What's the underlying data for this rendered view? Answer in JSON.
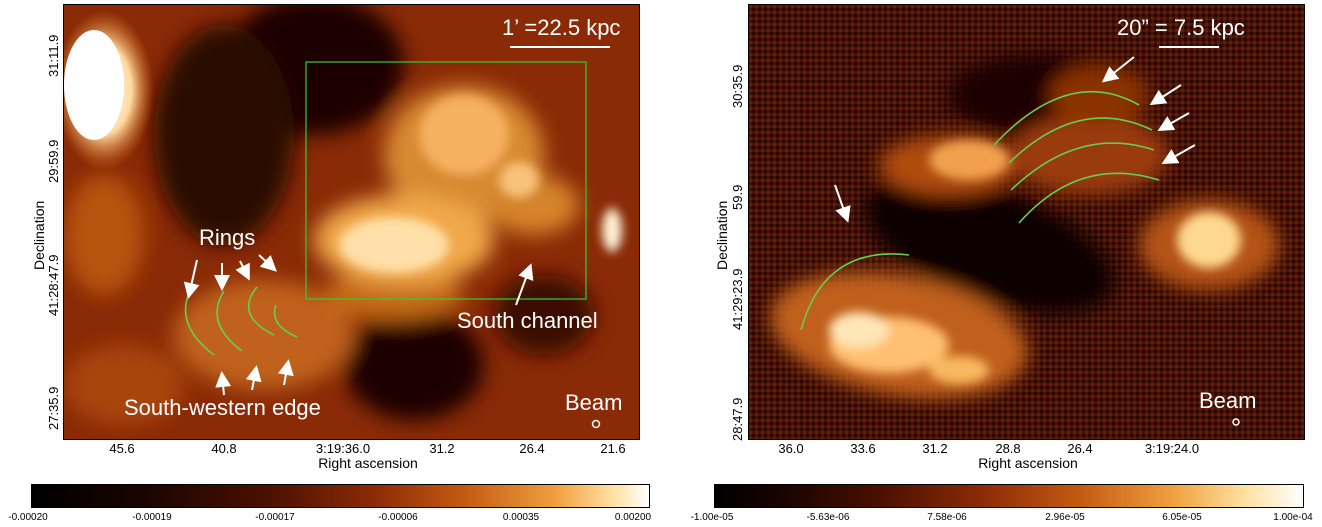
{
  "left": {
    "scale_label": "1’ =22.5 kpc",
    "ylabel": "Declination",
    "xlabel": "Right ascension",
    "yticks": [
      "31:11.9",
      "29:59.9",
      "41:28:47.9",
      "27:35.9"
    ],
    "xticks": [
      "45.6",
      "40.8",
      "3:19:36.0",
      "31.2",
      "26.4",
      "21.6"
    ],
    "rings_label": "Rings",
    "south_channel_label": "South channel",
    "sw_edge_label": "South-western edge",
    "beam_label": "Beam",
    "colorbar_ticks": [
      "-0.00020",
      "-0.00019",
      "-0.00017",
      "-0.00006",
      "0.00035",
      "0.00200"
    ],
    "colors": {
      "low": "#000000",
      "mid": "#a0300a",
      "high": "#ffffff",
      "box": "#33cc33",
      "arc": "#66cc55"
    }
  },
  "right": {
    "scale_label": "20” = 7.5 kpc",
    "ylabel": "Declination",
    "xlabel": "Right ascension",
    "yticks": [
      "30:35.9",
      "59.9",
      "41:29:23.9",
      "28:47.9"
    ],
    "xticks": [
      "36.0",
      "33.6",
      "31.2",
      "28.8",
      "26.4",
      "3:19:24.0"
    ],
    "beam_label": "Beam",
    "colorbar_ticks": [
      "-1.00e-05",
      "-5.63e-06",
      "7.58e-06",
      "2.96e-05",
      "6.05e-05",
      "1.00e-04"
    ]
  }
}
